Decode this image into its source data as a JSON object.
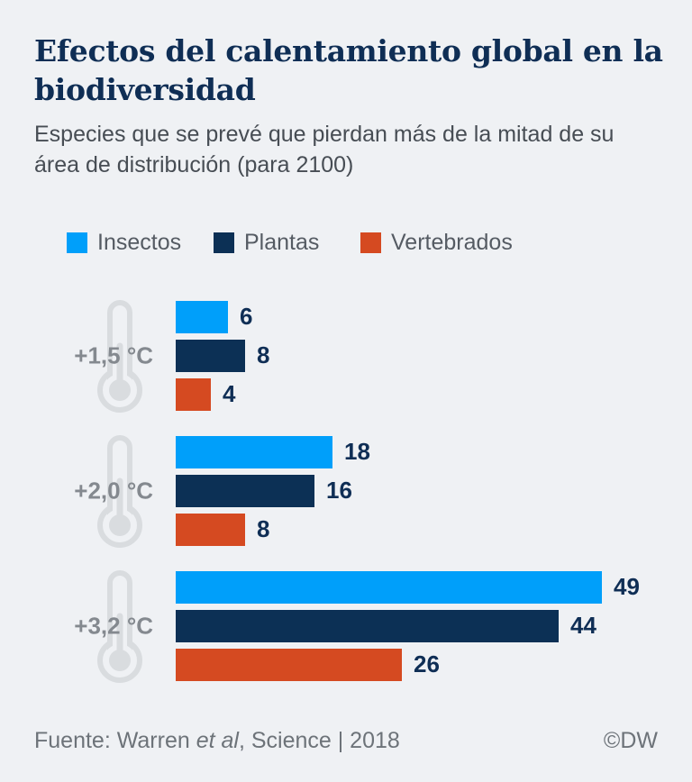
{
  "header": {
    "title": "Efectos del calentamiento global en la biodiversidad",
    "subtitle": "Especies que se prevé que pierdan más de la mitad de su área de distribución (para 2100)"
  },
  "chart_data": {
    "type": "bar",
    "orientation": "horizontal",
    "title": "Efectos del calentamiento global en la biodiversidad",
    "subtitle": "Especies que se prevé que pierdan más de la mitad de su área de distribución (para 2100)",
    "categories": [
      "+1,5 °C",
      "+2,0 °C",
      "+3,2 °C"
    ],
    "series": [
      {
        "name": "Insectos",
        "color": "#009ffa",
        "values": [
          6,
          18,
          49
        ]
      },
      {
        "name": "Plantas",
        "color": "#0c3055",
        "values": [
          8,
          16,
          44
        ]
      },
      {
        "name": "Vertebrados",
        "color": "#d54a21",
        "values": [
          4,
          8,
          26
        ]
      }
    ],
    "xlim": [
      0,
      49
    ],
    "grid": false,
    "legend_position": "top",
    "value_labels": "end-of-bar"
  },
  "footer": {
    "source_prefix": "Fuente: Warren ",
    "source_italic": "et al",
    "source_suffix": ", Science | 2018",
    "credit": "©DW"
  },
  "colors": {
    "background": "#eff1f4",
    "title_text": "#0f2e55",
    "subtitle_text": "#474d54",
    "legend_text": "#555b63",
    "category_label_text": "#84898f",
    "value_label_text": "#0f2e55",
    "thermometer_icon": "#d9dcdf",
    "footer_text": "#6d7379"
  }
}
